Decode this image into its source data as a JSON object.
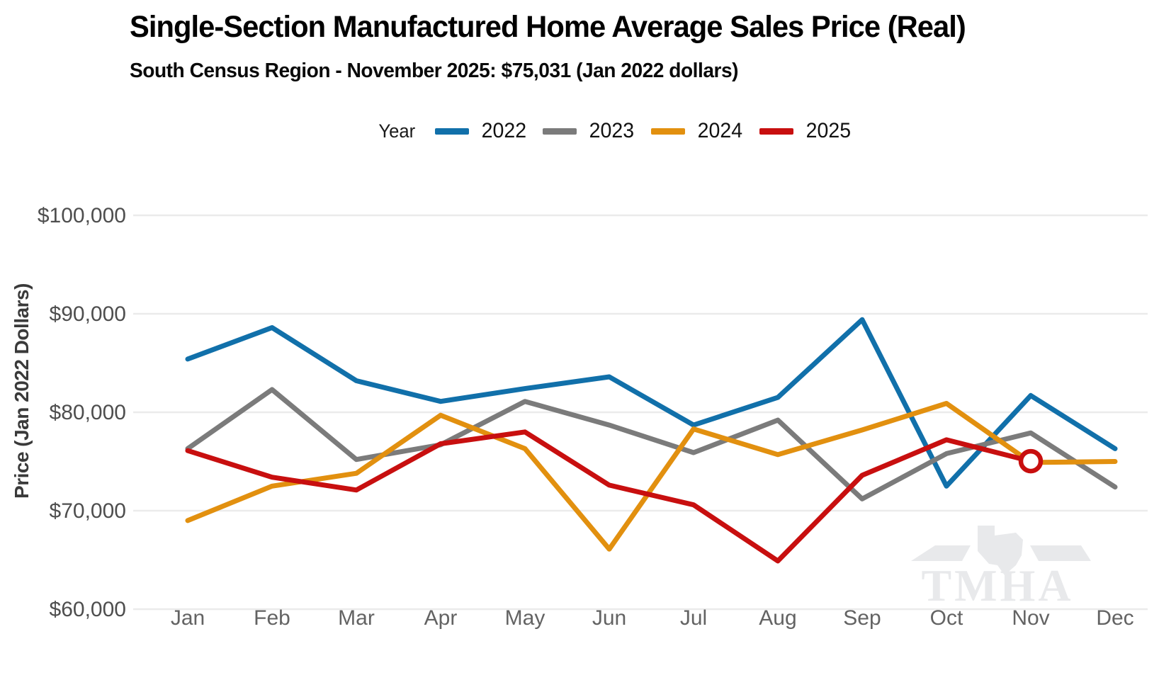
{
  "header": {
    "title": "Single-Section Manufactured Home Average Sales Price (Real)",
    "subtitle": "South Census Region - November 2025: $75,031 (Jan 2022 dollars)"
  },
  "legend": {
    "label": "Year",
    "entries": [
      {
        "label": "2022",
        "color": "#1170aa"
      },
      {
        "label": "2023",
        "color": "#7b7b7b"
      },
      {
        "label": "2024",
        "color": "#e2900f"
      },
      {
        "label": "2025",
        "color": "#c80f0f"
      }
    ]
  },
  "chart_data": {
    "type": "line",
    "title": "Single-Section Manufactured Home Average Sales Price (Real)",
    "subtitle": "South Census Region - November 2025: $75,031 (Jan 2022 dollars)",
    "x": [
      "Jan",
      "Feb",
      "Mar",
      "Apr",
      "May",
      "Jun",
      "Jul",
      "Aug",
      "Sep",
      "Oct",
      "Nov",
      "Dec"
    ],
    "xlabel": "",
    "ylabel": "Price (Jan 2022 Dollars)",
    "ylim": [
      60000,
      100000
    ],
    "yticks": [
      60000,
      70000,
      80000,
      90000,
      100000
    ],
    "ytick_labels": [
      "$60,000",
      "$70,000",
      "$80,000",
      "$90,000",
      "$100,000"
    ],
    "grid": "horizontal",
    "legend_position": "top",
    "series": [
      {
        "name": "2022",
        "color": "#1170aa",
        "values": [
          85400,
          88600,
          83200,
          81100,
          82400,
          83600,
          78700,
          81500,
          89400,
          72500,
          81700,
          76300
        ]
      },
      {
        "name": "2023",
        "color": "#7b7b7b",
        "values": [
          76300,
          82300,
          75200,
          76700,
          81100,
          78700,
          75900,
          79200,
          71200,
          75800,
          77900,
          72400
        ]
      },
      {
        "name": "2024",
        "color": "#e2900f",
        "values": [
          69000,
          72500,
          73800,
          79700,
          76300,
          66100,
          78300,
          75700,
          78200,
          80900,
          74900,
          75000
        ]
      },
      {
        "name": "2025",
        "color": "#c80f0f",
        "values": [
          76100,
          73400,
          72100,
          76800,
          78000,
          72600,
          70600,
          64900,
          73600,
          77200,
          75031
        ]
      }
    ],
    "highlight": {
      "series": "2025",
      "month": "Nov",
      "value": 75031,
      "marker": "open-circle"
    }
  },
  "watermark": {
    "text": "TMHA"
  }
}
